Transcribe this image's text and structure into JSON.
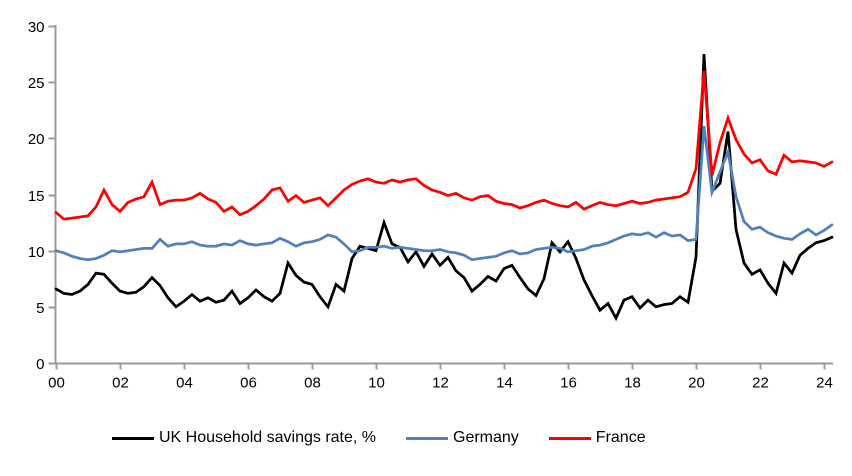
{
  "chart_data": {
    "type": "line",
    "x_unit": "quarterly",
    "x_start_year": 2000,
    "x_tick_labels": [
      "00",
      "02",
      "04",
      "06",
      "08",
      "10",
      "12",
      "14",
      "16",
      "18",
      "20",
      "22",
      "24"
    ],
    "x_tick_step_years": 2,
    "y_ticks": [
      0,
      5,
      10,
      15,
      20,
      25,
      30
    ],
    "ylim": [
      0,
      30
    ],
    "grid": false,
    "legend_position": "bottom",
    "axis_color": "#9a9a9a",
    "tick_label_color": "#000000",
    "series": [
      {
        "name": "UK Household savings rate, %",
        "color": "#000000",
        "values": [
          6.6,
          6.2,
          6.1,
          6.4,
          7.0,
          8.0,
          7.9,
          7.1,
          6.4,
          6.2,
          6.3,
          6.8,
          7.6,
          6.9,
          5.8,
          5.0,
          5.5,
          6.1,
          5.5,
          5.8,
          5.4,
          5.6,
          6.4,
          5.3,
          5.8,
          6.5,
          5.9,
          5.5,
          6.2,
          8.9,
          7.8,
          7.2,
          7.0,
          5.9,
          5.0,
          7.0,
          6.4,
          9.3,
          10.4,
          10.2,
          10.0,
          12.5,
          10.6,
          10.3,
          9.0,
          9.9,
          8.6,
          9.7,
          8.7,
          9.4,
          8.2,
          7.6,
          6.4,
          7.0,
          7.7,
          7.3,
          8.4,
          8.7,
          7.6,
          6.6,
          6.0,
          7.5,
          10.7,
          9.9,
          10.8,
          9.3,
          7.4,
          6.0,
          4.7,
          5.3,
          4.0,
          5.6,
          5.9,
          4.9,
          5.6,
          5.0,
          5.2,
          5.3,
          5.9,
          5.4,
          9.4,
          27.5,
          15.3,
          16.0,
          20.6,
          11.9,
          8.9,
          7.9,
          8.3,
          7.1,
          6.2,
          8.9,
          8.0,
          9.6,
          10.2,
          10.7,
          10.9,
          11.2
        ]
      },
      {
        "name": "Germany",
        "color": "#4F81BD",
        "values": [
          10.0,
          9.8,
          9.5,
          9.3,
          9.2,
          9.3,
          9.6,
          10.0,
          9.9,
          10.0,
          10.1,
          10.2,
          10.2,
          11.0,
          10.4,
          10.6,
          10.6,
          10.8,
          10.5,
          10.4,
          10.4,
          10.6,
          10.5,
          10.9,
          10.6,
          10.5,
          10.6,
          10.7,
          11.1,
          10.8,
          10.4,
          10.7,
          10.8,
          11.0,
          11.4,
          11.2,
          10.6,
          9.9,
          10.0,
          10.3,
          10.3,
          10.4,
          10.2,
          10.3,
          10.2,
          10.1,
          10.0,
          10.0,
          10.1,
          9.9,
          9.8,
          9.6,
          9.2,
          9.3,
          9.4,
          9.5,
          9.8,
          10.0,
          9.7,
          9.8,
          10.1,
          10.2,
          10.3,
          10.2,
          9.9,
          10.0,
          10.1,
          10.4,
          10.5,
          10.7,
          11.0,
          11.3,
          11.5,
          11.4,
          11.6,
          11.2,
          11.6,
          11.3,
          11.4,
          10.9,
          11.0,
          21.1,
          15.2,
          17.0,
          18.8,
          14.8,
          12.6,
          11.9,
          12.1,
          11.6,
          11.3,
          11.1,
          11.0,
          11.5,
          11.9,
          11.4,
          11.8,
          12.3
        ]
      },
      {
        "name": "France",
        "color": "#FF0000",
        "values": [
          13.4,
          12.8,
          12.9,
          13.0,
          13.1,
          13.9,
          15.4,
          14.1,
          13.5,
          14.3,
          14.6,
          14.8,
          16.1,
          14.1,
          14.4,
          14.5,
          14.5,
          14.7,
          15.1,
          14.6,
          14.3,
          13.5,
          13.9,
          13.2,
          13.5,
          14.0,
          14.6,
          15.4,
          15.6,
          14.4,
          14.9,
          14.3,
          14.5,
          14.7,
          14.0,
          14.7,
          15.4,
          15.9,
          16.2,
          16.4,
          16.1,
          16.0,
          16.3,
          16.1,
          16.3,
          16.4,
          15.8,
          15.4,
          15.2,
          14.9,
          15.1,
          14.7,
          14.5,
          14.8,
          14.9,
          14.4,
          14.2,
          14.1,
          13.8,
          14.0,
          14.3,
          14.5,
          14.2,
          14.0,
          13.9,
          14.3,
          13.7,
          14.0,
          14.3,
          14.1,
          14.0,
          14.2,
          14.4,
          14.2,
          14.3,
          14.5,
          14.6,
          14.7,
          14.8,
          15.2,
          17.3,
          26.0,
          16.7,
          19.6,
          21.8,
          19.9,
          18.6,
          17.8,
          18.1,
          17.1,
          16.8,
          18.5,
          17.9,
          18.0,
          17.9,
          17.8,
          17.5,
          17.9
        ]
      }
    ]
  },
  "legend": {
    "items": [
      {
        "label": "UK Household savings rate, %"
      },
      {
        "label": "Germany"
      },
      {
        "label": "France"
      }
    ]
  }
}
